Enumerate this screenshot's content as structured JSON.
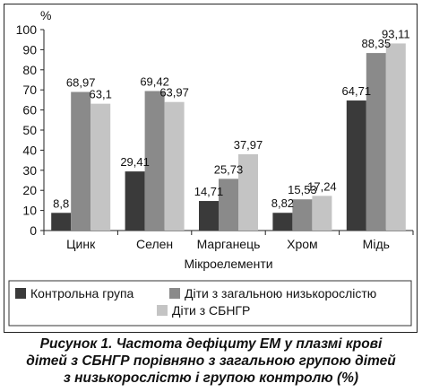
{
  "chart_data": {
    "type": "bar",
    "y_unit_label": "%",
    "xlabel": "Мікроелементи",
    "ylim": [
      0,
      100
    ],
    "yticks": [
      0,
      10,
      20,
      30,
      40,
      50,
      60,
      70,
      80,
      90,
      100
    ],
    "categories": [
      "Цинк",
      "Селен",
      "Марганець",
      "Хром",
      "Мідь"
    ],
    "data_label_texts": [
      [
        "8,8",
        "68,97",
        "63,1"
      ],
      [
        "29,41",
        "69,42",
        "63,97"
      ],
      [
        "14,71",
        "25,73",
        "37,97"
      ],
      [
        "8,82",
        "15,53",
        "17,24"
      ],
      [
        "64,71",
        "88,35",
        "93,11"
      ]
    ],
    "series": [
      {
        "name": "Контрольна група",
        "color": "#3a3a3a",
        "values": [
          8.8,
          29.41,
          14.71,
          8.82,
          64.71
        ]
      },
      {
        "name": "Діти з загальною низькорослістю",
        "color": "#8a8a8a",
        "values": [
          68.97,
          69.42,
          25.73,
          15.53,
          88.35
        ]
      },
      {
        "name": "Діти з СБНГР",
        "color": "#c4c4c4",
        "values": [
          63.1,
          63.97,
          37.97,
          17.24,
          93.11
        ]
      }
    ],
    "grid": false,
    "legend_position": "bottom"
  },
  "caption": {
    "line1": "Рисунок 1.  Частота дефіциту ЕМ у плазмі крові",
    "line2": "дітей з СБНГР порівняно з загальною групою дітей",
    "line3": "з низькорослістю і групою контролю (%)"
  }
}
